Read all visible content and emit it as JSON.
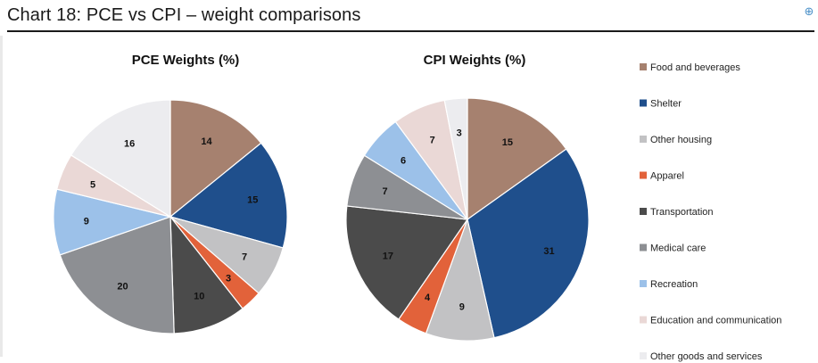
{
  "page": {
    "title": "Chart 18: PCE vs CPI – weight comparisons"
  },
  "chart_data": {
    "type": "pie",
    "categories": [
      "Food and beverages",
      "Shelter",
      "Other housing",
      "Apparel",
      "Transportation",
      "Medical care",
      "Recreation",
      "Education and communication",
      "Other goods and services"
    ],
    "colors": [
      "#a6816f",
      "#1f4f8c",
      "#c2c2c4",
      "#e2623a",
      "#4b4b4b",
      "#8d8f93",
      "#9cc1e9",
      "#ead8d6",
      "#ececef"
    ],
    "series": [
      {
        "name": "PCE Weights (%)",
        "values": [
          14,
          15,
          7,
          3,
          10,
          20,
          9,
          5,
          16
        ]
      },
      {
        "name": "CPI Weights (%)",
        "values": [
          15,
          31,
          9,
          4,
          17,
          7,
          6,
          7,
          3
        ]
      }
    ],
    "legend_position": "right"
  }
}
